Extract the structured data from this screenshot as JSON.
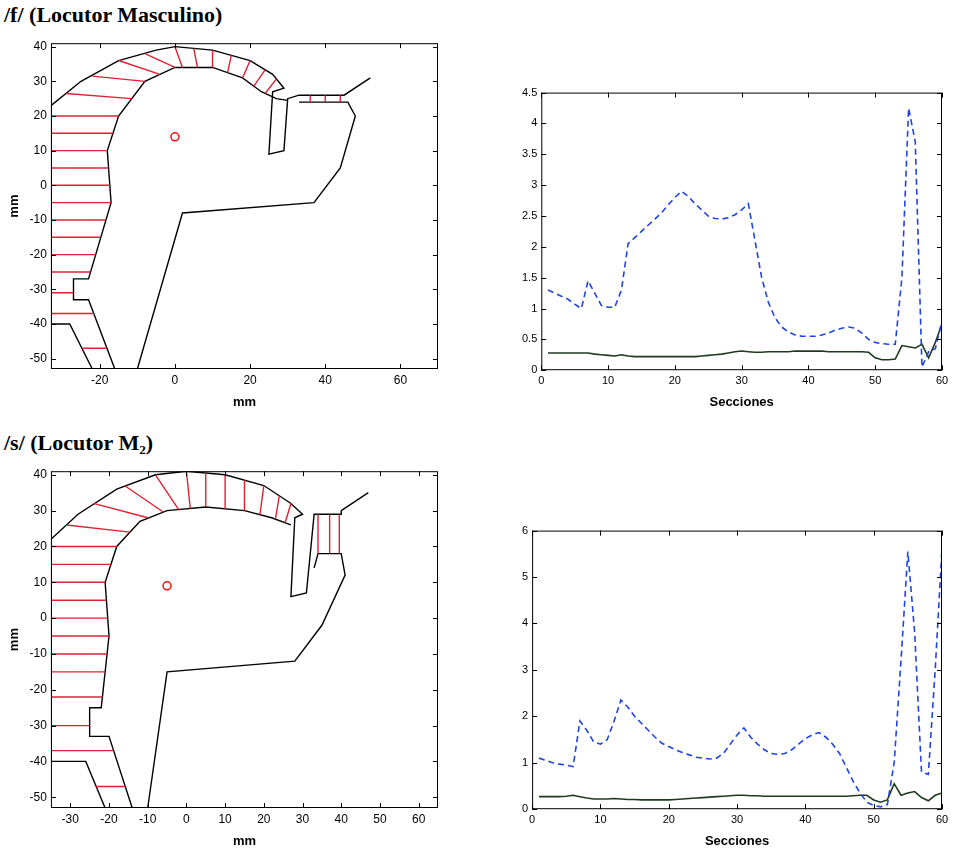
{
  "chart_data": [
    {
      "type": "scatter",
      "title": "/f/ (Locutor Masculino)",
      "xlabel": "mm",
      "ylabel": "mm",
      "xlim": [
        -33,
        70
      ],
      "xticks": [
        -20,
        0,
        20,
        40,
        60
      ],
      "ylim": [
        -53,
        41
      ],
      "yticks": [
        -50,
        -40,
        -30,
        -20,
        -10,
        0,
        10,
        20,
        30,
        40
      ],
      "grid": false,
      "series": [
        {
          "color": "#dd2233",
          "line_style": "solid",
          "marker": "none",
          "x": [
            -24.8,
            -18.1,
            null,
            -33,
            -21.6,
            null,
            -33,
            -27,
            null,
            -33,
            -22.5,
            null,
            -33,
            -21.2,
            null,
            -33,
            -19.9,
            null,
            -33,
            -18.5,
            null,
            -33,
            -17,
            null,
            -33,
            -17.3,
            null,
            -33,
            -17.7,
            null,
            -33,
            -18,
            null,
            -33,
            -16.5,
            null,
            -33,
            -15,
            null,
            -29,
            -11.5,
            null,
            -22,
            -8,
            null,
            -15,
            -4,
            null,
            -8,
            0,
            null,
            0,
            2,
            null,
            5,
            6,
            null,
            10,
            10,
            null,
            15,
            14,
            null,
            20,
            18,
            null,
            24,
            21,
            null,
            27,
            24,
            null,
            36,
            36,
            null,
            40,
            40,
            null,
            44,
            44
          ],
          "y": [
            -47,
            -47,
            null,
            -37,
            -37,
            null,
            -31,
            -31,
            null,
            -25,
            -25,
            null,
            -20,
            -20,
            null,
            -15,
            -15,
            null,
            -10,
            -10,
            null,
            -5,
            -5,
            null,
            0,
            0,
            null,
            5,
            5,
            null,
            10,
            10,
            null,
            15,
            15,
            null,
            20,
            20,
            null,
            26.5,
            25,
            null,
            31.5,
            30,
            null,
            36,
            32,
            null,
            38,
            34,
            null,
            40,
            34,
            null,
            39.5,
            34,
            null,
            39,
            34,
            null,
            37.5,
            32.5,
            null,
            36,
            31,
            null,
            33.3,
            28.6,
            null,
            30.7,
            26.5,
            null,
            26,
            24,
            null,
            26,
            24,
            null,
            26,
            24
          ]
        },
        {
          "color": "#000000",
          "line_style": "solid",
          "marker": "none",
          "x": [
            -22,
            -28,
            -33,
            -33,
            -25,
            -15,
            -5,
            0,
            10,
            20,
            26,
            29,
            26,
            25,
            29,
            30,
            33,
            45,
            52
          ],
          "y": [
            -53,
            -40,
            -40,
            23,
            30,
            36,
            39,
            40,
            39,
            36,
            32,
            28,
            27,
            9,
            10,
            25,
            26,
            26,
            31
          ]
        },
        {
          "color": "#000000",
          "line_style": "solid",
          "marker": "none",
          "x": [
            -16,
            -23,
            -27,
            -27,
            -23,
            -17,
            -18,
            -15,
            -8,
            0,
            10,
            18,
            23,
            27,
            30
          ],
          "y": [
            -53,
            -33,
            -33,
            -27,
            -27,
            -5,
            10,
            20,
            30,
            34,
            34,
            31,
            27,
            25,
            24.5
          ]
        },
        {
          "color": "#000000",
          "line_style": "solid",
          "marker": "none",
          "x": [
            -10,
            2,
            37,
            44,
            48,
            46,
            33
          ],
          "y": [
            -53,
            -8,
            -5,
            5,
            20,
            24,
            24
          ]
        },
        {
          "color": "#ee1111",
          "line_style": "none",
          "marker": "circle",
          "x": [
            0
          ],
          "y": [
            14
          ]
        }
      ]
    },
    {
      "type": "line",
      "xlabel": "Secciones",
      "x": [
        1,
        2,
        3,
        4,
        5,
        6,
        7,
        8,
        9,
        10,
        11,
        12,
        13,
        14,
        15,
        16,
        17,
        18,
        19,
        20,
        21,
        22,
        23,
        24,
        25,
        26,
        27,
        28,
        29,
        30,
        31,
        32,
        33,
        34,
        35,
        36,
        37,
        38,
        39,
        40,
        41,
        42,
        43,
        44,
        45,
        46,
        47,
        48,
        49,
        50,
        51,
        52,
        53,
        54,
        55,
        56,
        57,
        58,
        59,
        60
      ],
      "xlim": [
        0,
        60
      ],
      "xticks": [
        0,
        10,
        20,
        30,
        40,
        50,
        60
      ],
      "ylim": [
        0,
        4.5
      ],
      "yticks": [
        0,
        0.5,
        1,
        1.5,
        2,
        2.5,
        3,
        3.5,
        4,
        4.5
      ],
      "grid": false,
      "series": [
        {
          "color": "#1f44e0",
          "line_style": "dashed",
          "marker": "none",
          "values": [
            1.3,
            1.25,
            1.2,
            1.15,
            1.07,
            1.0,
            1.45,
            1.25,
            1.05,
            1.02,
            1.02,
            1.3,
            2.05,
            2.15,
            2.25,
            2.35,
            2.45,
            2.55,
            2.68,
            2.8,
            2.9,
            2.82,
            2.7,
            2.6,
            2.5,
            2.46,
            2.45,
            2.47,
            2.52,
            2.6,
            2.7,
            2.1,
            1.5,
            1.1,
            0.85,
            0.7,
            0.62,
            0.57,
            0.55,
            0.55,
            0.55,
            0.57,
            0.6,
            0.65,
            0.68,
            0.7,
            0.68,
            0.6,
            0.5,
            0.45,
            0.43,
            0.42,
            0.42,
            1.5,
            4.25,
            3.7,
            0.05,
            0.3,
            0.35,
            0.8
          ]
        },
        {
          "color": "#1e3b1e",
          "line_style": "solid",
          "marker": "none",
          "values": [
            0.28,
            0.28,
            0.28,
            0.28,
            0.28,
            0.28,
            0.28,
            0.26,
            0.25,
            0.24,
            0.23,
            0.25,
            0.23,
            0.22,
            0.22,
            0.22,
            0.22,
            0.22,
            0.22,
            0.22,
            0.22,
            0.22,
            0.22,
            0.23,
            0.24,
            0.25,
            0.26,
            0.28,
            0.3,
            0.31,
            0.3,
            0.29,
            0.29,
            0.3,
            0.3,
            0.3,
            0.3,
            0.31,
            0.31,
            0.31,
            0.31,
            0.31,
            0.3,
            0.3,
            0.3,
            0.3,
            0.3,
            0.3,
            0.29,
            0.2,
            0.17,
            0.17,
            0.18,
            0.4,
            0.38,
            0.36,
            0.42,
            0.2,
            0.45,
            0.75
          ]
        }
      ]
    },
    {
      "type": "scatter",
      "title": "/s/ (Locutor M₂)",
      "xlabel": "mm",
      "ylabel": "mm",
      "xlim": [
        -35,
        65
      ],
      "xticks": [
        -30,
        -20,
        -10,
        0,
        10,
        20,
        30,
        40,
        50,
        60
      ],
      "ylim": [
        -53,
        41
      ],
      "yticks": [
        -50,
        -40,
        -30,
        -20,
        -10,
        0,
        10,
        20,
        30,
        40
      ],
      "grid": false,
      "series": [
        {
          "color": "#dd2233",
          "line_style": "solid",
          "marker": "none",
          "x": [
            -23.3,
            -15.8,
            null,
            -35,
            -18.8,
            null,
            -35,
            -25,
            null,
            -35,
            -21.7,
            null,
            -35,
            -21,
            null,
            -35,
            -20.5,
            null,
            -35,
            -20,
            null,
            -35,
            -20.3,
            null,
            -35,
            -20.7,
            null,
            -35,
            -21,
            null,
            -35,
            -19.5,
            null,
            -35,
            -18,
            null,
            -31,
            -14.6,
            null,
            -24,
            -10,
            null,
            -16,
            -6,
            null,
            -8,
            -2,
            null,
            0,
            1,
            null,
            5,
            5,
            null,
            10,
            10,
            null,
            15,
            15,
            null,
            20,
            19,
            null,
            24,
            23,
            null,
            27,
            25.5,
            null,
            34,
            34,
            null,
            37,
            37,
            null,
            39.5,
            39.5
          ],
          "y": [
            -47,
            -47,
            null,
            -37,
            -37,
            null,
            -30,
            -30,
            null,
            -22,
            -22,
            null,
            -15,
            -15,
            null,
            -10,
            -10,
            null,
            -5,
            -5,
            null,
            0,
            0,
            null,
            5,
            5,
            null,
            10,
            10,
            null,
            15,
            15,
            null,
            20,
            20,
            null,
            26,
            24,
            null,
            32,
            28,
            null,
            37,
            29.6,
            null,
            40,
            30.3,
            null,
            41,
            30.6,
            null,
            40.5,
            31,
            null,
            40,
            30.5,
            null,
            38.5,
            30,
            null,
            37,
            28.9,
            null,
            34.1,
            27.6,
            null,
            32,
            26.6,
            null,
            29,
            18,
            null,
            29,
            18,
            null,
            29,
            18
          ]
        },
        {
          "color": "#000000",
          "line_style": "solid",
          "marker": "none",
          "x": [
            -21,
            -26,
            -35,
            -35,
            -28,
            -18,
            -8,
            0,
            10,
            20,
            27,
            30,
            28,
            27,
            31,
            33,
            40,
            40,
            47
          ],
          "y": [
            -53,
            -40,
            -40,
            22,
            29,
            36,
            40,
            41,
            40,
            37,
            32,
            29,
            28,
            6,
            7,
            29,
            29,
            30,
            35
          ]
        },
        {
          "color": "#000000",
          "line_style": "solid",
          "marker": "none",
          "x": [
            -14,
            -20,
            -25,
            -25,
            -22,
            -20,
            -21,
            -18,
            -12,
            -5,
            5,
            15,
            22,
            27
          ],
          "y": [
            -53,
            -33,
            -33,
            -25,
            -25,
            -5,
            10,
            20,
            27,
            30,
            31,
            30,
            28,
            26
          ]
        },
        {
          "color": "#000000",
          "line_style": "solid",
          "marker": "none",
          "x": [
            -10,
            -5,
            28,
            35,
            41,
            40,
            34,
            33
          ],
          "y": [
            -53,
            -15,
            -12,
            -2,
            12,
            18,
            18,
            14
          ]
        },
        {
          "color": "#ee1111",
          "line_style": "none",
          "marker": "circle",
          "x": [
            -5
          ],
          "y": [
            9
          ]
        }
      ]
    },
    {
      "type": "line",
      "xlabel": "Secciones",
      "x": [
        1,
        2,
        3,
        4,
        5,
        6,
        7,
        8,
        9,
        10,
        11,
        12,
        13,
        14,
        15,
        16,
        17,
        18,
        19,
        20,
        21,
        22,
        23,
        24,
        25,
        26,
        27,
        28,
        29,
        30,
        31,
        32,
        33,
        34,
        35,
        36,
        37,
        38,
        39,
        40,
        41,
        42,
        43,
        44,
        45,
        46,
        47,
        48,
        49,
        50,
        51,
        52,
        53,
        54,
        55,
        56,
        57,
        58,
        59,
        60
      ],
      "xlim": [
        0,
        60
      ],
      "xticks": [
        0,
        10,
        20,
        30,
        40,
        50,
        60
      ],
      "ylim": [
        0,
        6
      ],
      "yticks": [
        0,
        1,
        2,
        3,
        4,
        5,
        6
      ],
      "grid": false,
      "series": [
        {
          "color": "#1f44e0",
          "line_style": "dashed",
          "marker": "none",
          "values": [
            1.1,
            1.05,
            1.0,
            0.97,
            0.95,
            0.92,
            1.9,
            1.7,
            1.45,
            1.4,
            1.5,
            1.9,
            2.35,
            2.2,
            2.0,
            1.85,
            1.7,
            1.55,
            1.42,
            1.35,
            1.28,
            1.22,
            1.17,
            1.12,
            1.1,
            1.08,
            1.1,
            1.2,
            1.4,
            1.6,
            1.75,
            1.55,
            1.4,
            1.28,
            1.2,
            1.18,
            1.2,
            1.28,
            1.4,
            1.52,
            1.6,
            1.65,
            1.55,
            1.4,
            1.2,
            0.9,
            0.6,
            0.35,
            0.15,
            0.08,
            0.05,
            0.1,
            1.0,
            3.2,
            5.55,
            3.8,
            0.8,
            0.75,
            3.0,
            5.6
          ]
        },
        {
          "color": "#1e3b1e",
          "line_style": "solid",
          "marker": "none",
          "values": [
            0.27,
            0.27,
            0.27,
            0.27,
            0.28,
            0.3,
            0.27,
            0.24,
            0.22,
            0.22,
            0.22,
            0.23,
            0.22,
            0.21,
            0.21,
            0.2,
            0.2,
            0.2,
            0.2,
            0.2,
            0.21,
            0.22,
            0.23,
            0.24,
            0.25,
            0.26,
            0.27,
            0.28,
            0.29,
            0.3,
            0.3,
            0.29,
            0.29,
            0.28,
            0.28,
            0.28,
            0.28,
            0.28,
            0.28,
            0.28,
            0.28,
            0.28,
            0.28,
            0.28,
            0.28,
            0.28,
            0.29,
            0.3,
            0.3,
            0.2,
            0.15,
            0.2,
            0.55,
            0.3,
            0.35,
            0.38,
            0.25,
            0.18,
            0.3,
            0.35
          ]
        }
      ]
    }
  ]
}
